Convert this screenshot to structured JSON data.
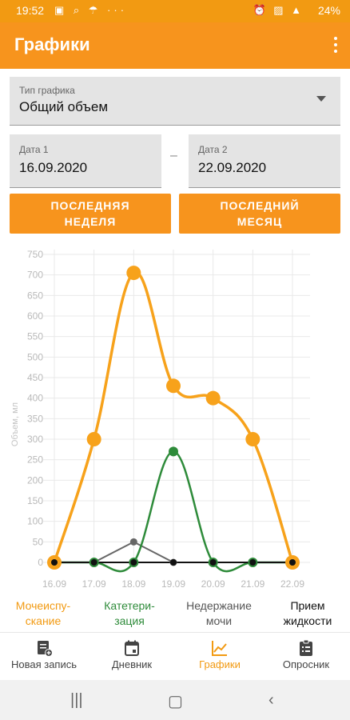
{
  "status": {
    "time": "19:52",
    "battery": "24%"
  },
  "app": {
    "title": "Графики"
  },
  "chart_type_field": {
    "label": "Тип графика",
    "value": "Общий объем"
  },
  "date1": {
    "label": "Дата 1",
    "value": "16.09.2020"
  },
  "date2": {
    "label": "Дата 2",
    "value": "22.09.2020"
  },
  "separator": "–",
  "buttons": {
    "last_week": "ПОСЛЕДНЯЯ\nНЕДЕЛЯ",
    "last_month": "ПОСЛЕДНИЙ\nМЕСЯЦ"
  },
  "colors": {
    "accent": "#f7941d",
    "orange_series": "#f7a21b",
    "green_series": "#2e8b3a",
    "gray_series": "#666666",
    "black_series": "#111111"
  },
  "chart_data": {
    "type": "line",
    "ylabel": "Объем, мл",
    "xlabel": "",
    "ylim": [
      0,
      750
    ],
    "yticks": [
      0,
      50,
      100,
      150,
      200,
      250,
      300,
      350,
      400,
      450,
      500,
      550,
      600,
      650,
      700,
      750
    ],
    "categories": [
      "16.09",
      "17.09",
      "18.09",
      "19.09",
      "20.09",
      "21.09",
      "22.09"
    ],
    "grid": true,
    "series": [
      {
        "name": "Мочеиспу-\nскание",
        "color": "#f7a21b",
        "values": [
          0,
          300,
          705,
          430,
          400,
          300,
          0
        ]
      },
      {
        "name": "Катетери-\nзация",
        "color": "#2e8b3a",
        "values": [
          0,
          0,
          0,
          270,
          0,
          0,
          0
        ]
      },
      {
        "name": "Недержание\nмочи",
        "color": "#666666",
        "values": [
          0,
          0,
          50,
          0,
          0,
          0,
          0
        ]
      },
      {
        "name": "Прием\nжидкости",
        "color": "#111111",
        "values": [
          0,
          0,
          0,
          0,
          0,
          0,
          0
        ]
      }
    ]
  },
  "nav": {
    "items": [
      {
        "label": "Новая запись",
        "icon": "new-record-icon"
      },
      {
        "label": "Дневник",
        "icon": "calendar-icon"
      },
      {
        "label": "Графики",
        "icon": "chart-icon"
      },
      {
        "label": "Опросник",
        "icon": "clipboard-icon"
      }
    ]
  }
}
